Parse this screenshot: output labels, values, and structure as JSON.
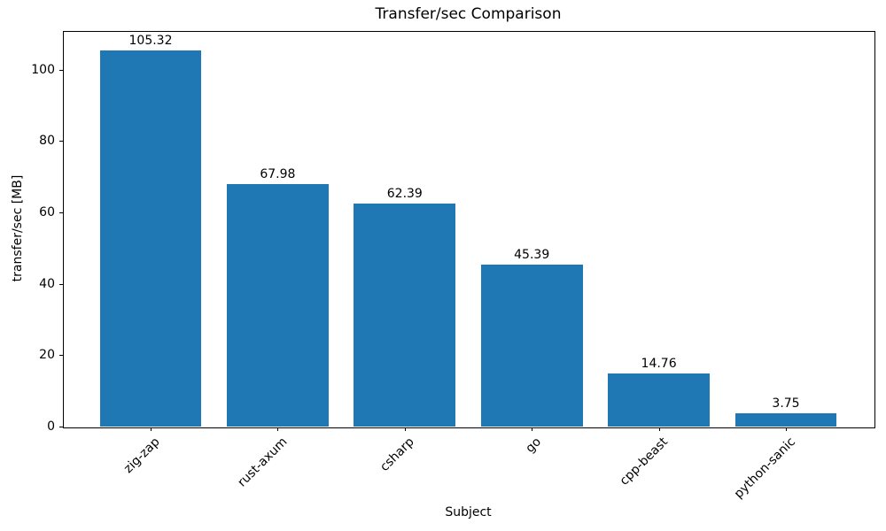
{
  "chart_data": {
    "type": "bar",
    "title": "Transfer/sec Comparison",
    "xlabel": "Subject",
    "ylabel": "transfer/sec [MB]",
    "categories": [
      "zig-zap",
      "rust-axum",
      "csharp",
      "go",
      "cpp-beast",
      "python-sanic"
    ],
    "values": [
      105.32,
      67.98,
      62.39,
      45.39,
      14.76,
      3.75
    ],
    "value_labels": [
      "105.32",
      "67.98",
      "62.39",
      "45.39",
      "14.76",
      "3.75"
    ],
    "yticks": [
      0,
      20,
      40,
      60,
      80,
      100
    ],
    "ylim": [
      0,
      110.8
    ],
    "x_tick_rotation_deg": 45,
    "bar_color": "#1f77b4",
    "axis_color": "#000000",
    "grid": false,
    "legend_position": "none"
  }
}
